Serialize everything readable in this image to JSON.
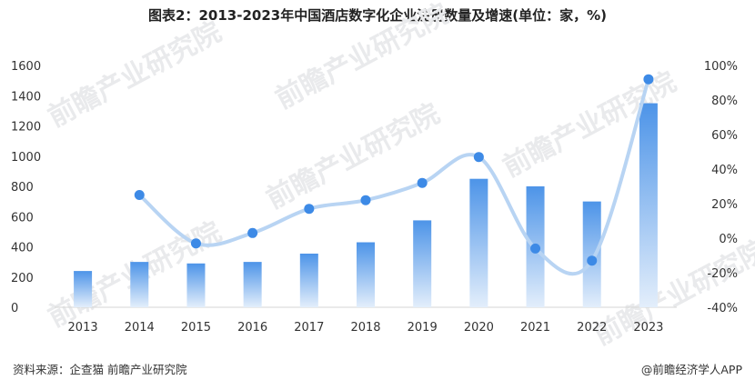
{
  "title": "图表2：2013-2023年中国酒店数字化企业注册数量及增速(单位：家，%)",
  "source": "资料来源：企查猫 前瞻产业研究院",
  "brand": "@前瞻经济学人APP",
  "watermark": "前瞻产业研究院",
  "colors": {
    "bar_top": "#4d94e8",
    "bar_bottom": "#e3eefb",
    "line": "#b8d4f3",
    "marker": "#3d8ae6",
    "axis_text": "#333333",
    "watermark": "#e9eaec"
  },
  "chart_data": {
    "type": "bar+line",
    "categories": [
      "2013",
      "2014",
      "2015",
      "2016",
      "2017",
      "2018",
      "2019",
      "2020",
      "2021",
      "2022",
      "2023"
    ],
    "series": [
      {
        "type": "bar",
        "axis": "left",
        "values": [
          240,
          300,
          290,
          300,
          355,
          430,
          575,
          850,
          800,
          700,
          1350
        ]
      },
      {
        "type": "line",
        "axis": "right",
        "values": [
          null,
          25,
          -3,
          3,
          17,
          22,
          32,
          47,
          -6,
          -13,
          92
        ]
      }
    ],
    "y_left": {
      "min": 0,
      "max": 1600,
      "ticks": [
        0,
        200,
        400,
        600,
        800,
        1000,
        1200,
        1400,
        1600
      ]
    },
    "y_right": {
      "min": -40,
      "max": 100,
      "ticks": [
        "-40%",
        "-20%",
        "0%",
        "20%",
        "40%",
        "60%",
        "80%",
        "100%"
      ]
    },
    "legend": "none",
    "grid": false
  }
}
